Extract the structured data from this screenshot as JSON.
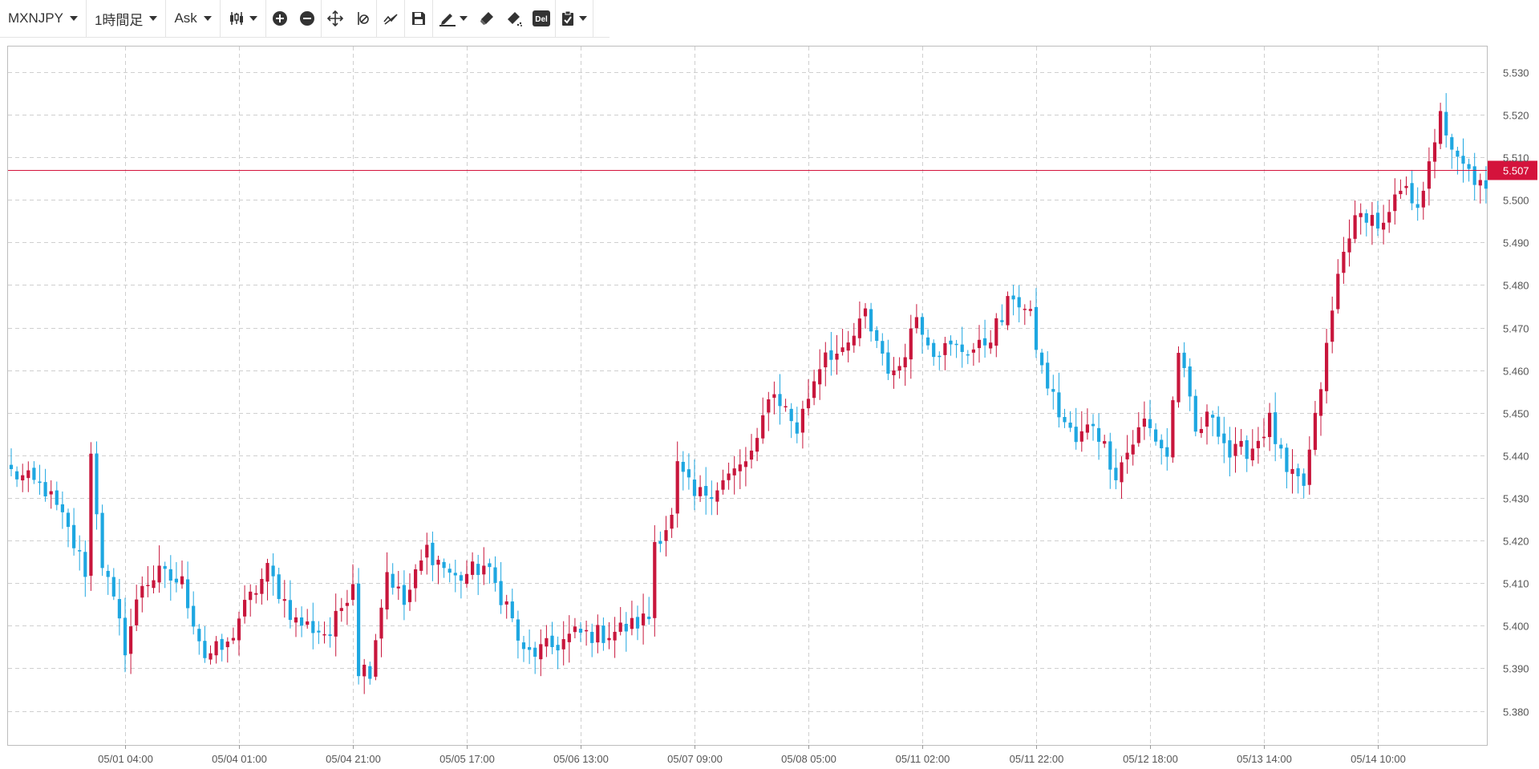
{
  "toolbar": {
    "symbol": "MXNJPY",
    "timeframe": "1時間足",
    "price_type": "Ask",
    "del_label": "Del",
    "icons": [
      "candlestick-icon",
      "zoom-in-icon",
      "zoom-out-icon",
      "move-icon",
      "ruler-icon",
      "indicator-icon",
      "save-icon",
      "pen-icon",
      "eraser-icon",
      "eraser-all-icon",
      "delete-icon",
      "clipboard-icon"
    ]
  },
  "colors": {
    "up": "#c8163c",
    "down": "#1ea7e1",
    "current_line": "#d4133c",
    "grid": "#cfcfcf",
    "axis_text": "#555555"
  },
  "chart_data": {
    "type": "candlestick",
    "symbol": "MXNJPY",
    "timeframe": "1時間足",
    "ylim": [
      5.372,
      5.536
    ],
    "yticks": [
      5.38,
      5.39,
      5.4,
      5.41,
      5.42,
      5.43,
      5.44,
      5.45,
      5.46,
      5.47,
      5.48,
      5.49,
      5.5,
      5.51,
      5.52,
      5.53
    ],
    "ytick_labels": [
      "5.380",
      "5.390",
      "5.400",
      "5.410",
      "5.420",
      "5.430",
      "5.440",
      "5.450",
      "5.460",
      "5.470",
      "5.480",
      "5.490",
      "5.500",
      "5.510",
      "5.520",
      "5.530"
    ],
    "xtick_labels": [
      "05/01 04:00",
      "05/04 01:00",
      "05/04 21:00",
      "05/05 17:00",
      "05/06 13:00",
      "05/07 09:00",
      "05/08 05:00",
      "05/11 02:00",
      "05/11 22:00",
      "05/12 18:00",
      "05/13 14:00",
      "05/14 10:00"
    ],
    "xtick_index": [
      20,
      40,
      60,
      80,
      100,
      120,
      140,
      160,
      180,
      200,
      220,
      240
    ],
    "current_price": 5.507,
    "current_price_label": "5.507",
    "anchors": [
      [
        0,
        5.436
      ],
      [
        6,
        5.432
      ],
      [
        9,
        5.425
      ],
      [
        13,
        5.413
      ],
      [
        14,
        5.44
      ],
      [
        16,
        5.415
      ],
      [
        20,
        5.395
      ],
      [
        23,
        5.41
      ],
      [
        26,
        5.412
      ],
      [
        30,
        5.41
      ],
      [
        34,
        5.393
      ],
      [
        38,
        5.395
      ],
      [
        40,
        5.402
      ],
      [
        45,
        5.413
      ],
      [
        50,
        5.401
      ],
      [
        56,
        5.398
      ],
      [
        60,
        5.411
      ],
      [
        61,
        5.39
      ],
      [
        63,
        5.39
      ],
      [
        66,
        5.413
      ],
      [
        69,
        5.405
      ],
      [
        73,
        5.418
      ],
      [
        78,
        5.411
      ],
      [
        83,
        5.414
      ],
      [
        87,
        5.405
      ],
      [
        90,
        5.393
      ],
      [
        95,
        5.395
      ],
      [
        99,
        5.398
      ],
      [
        104,
        5.398
      ],
      [
        109,
        5.4
      ],
      [
        112,
        5.402
      ],
      [
        113,
        5.42
      ],
      [
        116,
        5.425
      ],
      [
        117,
        5.437
      ],
      [
        120,
        5.43
      ],
      [
        124,
        5.433
      ],
      [
        128,
        5.437
      ],
      [
        131,
        5.442
      ],
      [
        133,
        5.455
      ],
      [
        135,
        5.453
      ],
      [
        138,
        5.446
      ],
      [
        141,
        5.458
      ],
      [
        143,
        5.465
      ],
      [
        146,
        5.463
      ],
      [
        150,
        5.473
      ],
      [
        155,
        5.458
      ],
      [
        159,
        5.473
      ],
      [
        162,
        5.465
      ],
      [
        166,
        5.465
      ],
      [
        170,
        5.465
      ],
      [
        174,
        5.472
      ],
      [
        176,
        5.478
      ],
      [
        179,
        5.472
      ],
      [
        181,
        5.46
      ],
      [
        184,
        5.45
      ],
      [
        187,
        5.443
      ],
      [
        190,
        5.448
      ],
      [
        194,
        5.436
      ],
      [
        199,
        5.448
      ],
      [
        203,
        5.44
      ],
      [
        205,
        5.465
      ],
      [
        208,
        5.445
      ],
      [
        211,
        5.45
      ],
      [
        214,
        5.44
      ],
      [
        218,
        5.442
      ],
      [
        221,
        5.448
      ],
      [
        224,
        5.435
      ],
      [
        227,
        5.433
      ],
      [
        229,
        5.448
      ],
      [
        231,
        5.465
      ],
      [
        233,
        5.482
      ],
      [
        235,
        5.493
      ],
      [
        238,
        5.497
      ],
      [
        241,
        5.493
      ],
      [
        244,
        5.502
      ],
      [
        247,
        5.5
      ],
      [
        249,
        5.507
      ],
      [
        250,
        5.512
      ],
      [
        251,
        5.522
      ],
      [
        253,
        5.51
      ],
      [
        257,
        5.505
      ],
      [
        259,
        5.501
      ]
    ]
  }
}
